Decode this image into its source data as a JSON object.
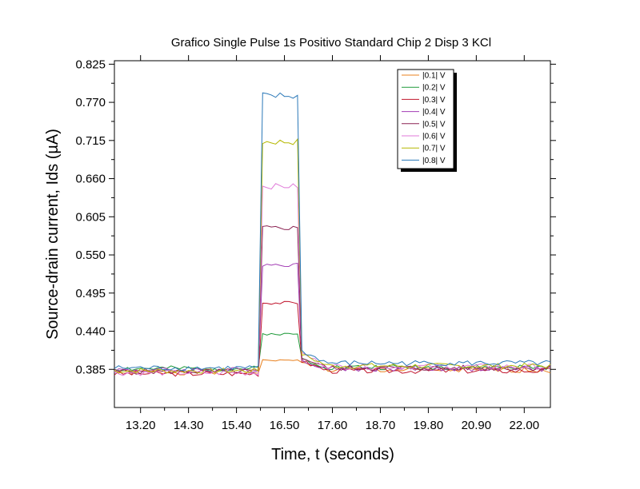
{
  "chart_data": {
    "type": "line",
    "title": "Grafico Single Pulse 1s Positivo Standard Chip 2 Disp 3 KCl",
    "xlabel": "Time, t (seconds)",
    "ylabel": "Source-drain current, Ids (µA)",
    "xlim": [
      12.6,
      22.6
    ],
    "ylim": [
      0.33,
      0.83
    ],
    "x_ticks": [
      13.2,
      14.3,
      15.4,
      16.5,
      17.6,
      18.7,
      19.8,
      20.9,
      22.0
    ],
    "x_tick_labels": [
      "13.20",
      "14.30",
      "15.40",
      "16.50",
      "17.60",
      "18.70",
      "19.80",
      "20.90",
      "22.00"
    ],
    "y_ticks": [
      0.385,
      0.44,
      0.495,
      0.55,
      0.605,
      0.66,
      0.715,
      0.77,
      0.825
    ],
    "y_tick_labels": [
      "0.385",
      "0.440",
      "0.495",
      "0.550",
      "0.605",
      "0.660",
      "0.715",
      "0.770",
      "0.825"
    ],
    "grid": false,
    "legend_position": "top-right",
    "pulse": {
      "start": 15.9,
      "end": 16.9
    },
    "series": [
      {
        "name": "|0.1| V",
        "color": "#e8801e",
        "baseline": 0.381,
        "plateau": 0.398,
        "tail": 0.384
      },
      {
        "name": "|0.2| V",
        "color": "#1f9a3a",
        "baseline": 0.386,
        "plateau": 0.436,
        "tail": 0.388
      },
      {
        "name": "|0.3| V",
        "color": "#c0142c",
        "baseline": 0.379,
        "plateau": 0.481,
        "tail": 0.383
      },
      {
        "name": "|0.4| V",
        "color": "#a23cb4",
        "baseline": 0.384,
        "plateau": 0.536,
        "tail": 0.386
      },
      {
        "name": "|0.5| V",
        "color": "#8b2252",
        "baseline": 0.382,
        "plateau": 0.589,
        "tail": 0.387
      },
      {
        "name": "|0.6| V",
        "color": "#e07ad8",
        "baseline": 0.38,
        "plateau": 0.649,
        "tail": 0.389
      },
      {
        "name": "|0.7| V",
        "color": "#b5b800",
        "baseline": 0.383,
        "plateau": 0.713,
        "tail": 0.39
      },
      {
        "name": "|0.8| V",
        "color": "#2a78b8",
        "baseline": 0.387,
        "plateau": 0.779,
        "tail": 0.394
      }
    ]
  }
}
